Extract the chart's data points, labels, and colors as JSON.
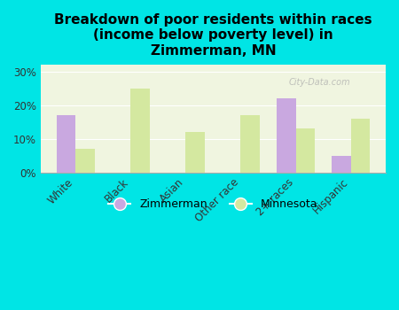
{
  "title": "Breakdown of poor residents within races\n(income below poverty level) in\nZimmerman, MN",
  "categories": [
    "White",
    "Black",
    "Asian",
    "Other race",
    "2+ races",
    "Hispanic"
  ],
  "zimmerman": [
    17,
    0,
    0,
    0,
    22,
    5
  ],
  "minnesota": [
    7,
    25,
    12,
    17,
    13,
    16
  ],
  "zimmerman_color": "#c9a8e0",
  "minnesota_color": "#d4e8a0",
  "background_color": "#00e5e5",
  "plot_bg_color": "#f0f5e0",
  "ylim": [
    0,
    32
  ],
  "yticks": [
    0,
    10,
    20,
    30
  ],
  "bar_width": 0.35,
  "title_fontsize": 11,
  "tick_fontsize": 8.5,
  "legend_fontsize": 9
}
